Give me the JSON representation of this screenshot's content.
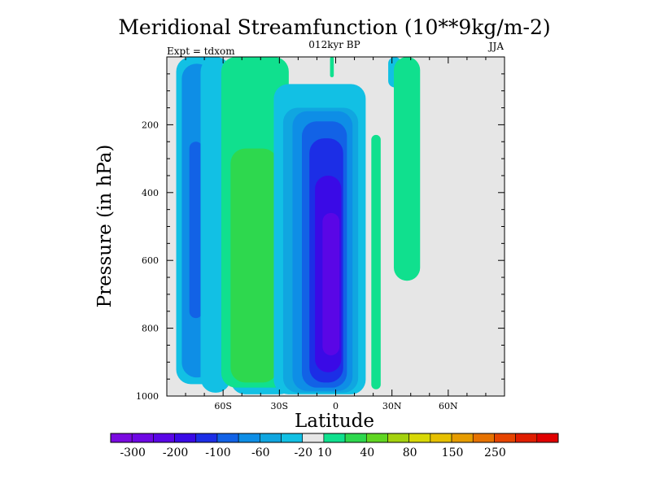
{
  "chart_data": {
    "type": "heatmap",
    "title": "Meridional Streamfunction (10**9kg/m-2)",
    "subtitle": "012kyr BP",
    "left_label": "Expt = tdxom",
    "right_label": "JJA",
    "xlabel": "Latitude",
    "ylabel": "Pressure (in hPa)",
    "x_range": [
      -90,
      90
    ],
    "y_range": [
      1000,
      0
    ],
    "y_ticks": [
      200,
      400,
      600,
      800,
      1000
    ],
    "x_ticks": [
      {
        "value": -60,
        "label": "60S"
      },
      {
        "value": -30,
        "label": "30S"
      },
      {
        "value": 0,
        "label": "0"
      },
      {
        "value": 30,
        "label": "30N"
      },
      {
        "value": 60,
        "label": "60N"
      }
    ],
    "colorbar": {
      "colors": [
        "#7a0ae0",
        "#6e08e4",
        "#5a06e6",
        "#3a0ae6",
        "#1c2ee6",
        "#1262e6",
        "#0e8ee6",
        "#10a6e0",
        "#12c0e4",
        "#e6e6e6",
        "#10e08e",
        "#2ed84e",
        "#60d622",
        "#a4d20e",
        "#d8d806",
        "#e6c000",
        "#e69c00",
        "#e67200",
        "#e64400",
        "#e01e00",
        "#e00000"
      ],
      "tick_labels": [
        "-300",
        "-200",
        "-100",
        "-60",
        "-20",
        "10",
        "40",
        "80",
        "150",
        "250"
      ]
    },
    "regions": [
      {
        "color": "#12c0e4",
        "lat": [
          -85,
          -60
        ],
        "p": [
          0,
          965
        ]
      },
      {
        "color": "#0e8ee6",
        "lat": [
          -82,
          -66
        ],
        "p": [
          20,
          945
        ]
      },
      {
        "color": "#1262e6",
        "lat": [
          -78,
          -71
        ],
        "p": [
          250,
          770
        ]
      },
      {
        "color": "#12c0e4",
        "lat": [
          -72,
          -56
        ],
        "p": [
          0,
          990
        ]
      },
      {
        "color": "#12c0e4",
        "lat": [
          -56,
          -22
        ],
        "p": [
          160,
          995
        ]
      },
      {
        "color": "#10e08e",
        "lat": [
          -61,
          -25
        ],
        "p": [
          0,
          975
        ]
      },
      {
        "color": "#2ed84e",
        "lat": [
          -56,
          -31
        ],
        "p": [
          270,
          960
        ]
      },
      {
        "color": "#12c0e4",
        "lat": [
          -33,
          16
        ],
        "p": [
          80,
          995
        ]
      },
      {
        "color": "#10a6e0",
        "lat": [
          -28,
          12
        ],
        "p": [
          150,
          990
        ]
      },
      {
        "color": "#0e8ee6",
        "lat": [
          -23,
          9
        ],
        "p": [
          160,
          985
        ]
      },
      {
        "color": "#1262e6",
        "lat": [
          -18,
          6
        ],
        "p": [
          190,
          975
        ]
      },
      {
        "color": "#1c2ee6",
        "lat": [
          -14,
          4
        ],
        "p": [
          240,
          960
        ]
      },
      {
        "color": "#3a0ae6",
        "lat": [
          -11,
          3
        ],
        "p": [
          350,
          930
        ]
      },
      {
        "color": "#5a06e6",
        "lat": [
          -7,
          2
        ],
        "p": [
          460,
          880
        ]
      },
      {
        "color": "#10e08e",
        "lat": [
          19,
          24
        ],
        "p": [
          230,
          980
        ]
      },
      {
        "color": "#12c0e4",
        "lat": [
          28,
          35
        ],
        "p": [
          0,
          90
        ]
      },
      {
        "color": "#10e08e",
        "lat": [
          31,
          45
        ],
        "p": [
          0,
          660
        ]
      },
      {
        "color": "#10e08e",
        "lat": [
          -3,
          -1
        ],
        "p": [
          0,
          60
        ]
      }
    ]
  }
}
